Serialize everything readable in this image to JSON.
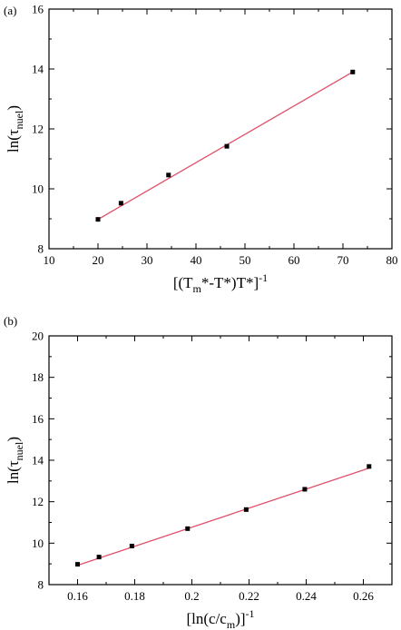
{
  "chart_data": [
    {
      "type": "scatter",
      "panel_label": "(a)",
      "xlabel_parts": [
        "[(T",
        "m",
        "*-T*)T*]",
        "-1"
      ],
      "ylabel_parts": [
        "ln(τ",
        "nuel",
        ")"
      ],
      "xlim": [
        10,
        80
      ],
      "ylim": [
        8,
        16
      ],
      "xticks": [
        10,
        20,
        30,
        40,
        50,
        60,
        70,
        80
      ],
      "yticks": [
        8,
        10,
        12,
        14,
        16
      ],
      "xtick_labels": [
        "10",
        "20",
        "30",
        "40",
        "50",
        "60",
        "70",
        "80"
      ],
      "ytick_labels": [
        "8",
        "10",
        "12",
        "14",
        "16"
      ],
      "grid": false,
      "series": [
        {
          "x": [
            20.0,
            24.7,
            34.4,
            46.3,
            72.0
          ],
          "y": [
            8.98,
            9.52,
            10.46,
            11.42,
            13.9
          ]
        }
      ],
      "fit_line": {
        "x": [
          20.0,
          72.0
        ],
        "y": [
          8.98,
          13.9
        ],
        "color": "#e0506a"
      }
    },
    {
      "type": "scatter",
      "panel_label": "(b)",
      "xlabel_parts": [
        "[ln(c/c",
        "m",
        ")]",
        "-1"
      ],
      "ylabel_parts": [
        "ln(τ",
        "nuel",
        ")"
      ],
      "xlim": [
        0.15,
        0.27
      ],
      "ylim": [
        8,
        20
      ],
      "xticks": [
        0.16,
        0.18,
        0.2,
        0.22,
        0.24,
        0.26
      ],
      "yticks": [
        8,
        10,
        12,
        14,
        16,
        18,
        20
      ],
      "xtick_labels": [
        "0.16",
        "0.18",
        "0.2",
        "0.22",
        "0.24",
        "0.26"
      ],
      "ytick_labels": [
        "8",
        "10",
        "12",
        "14",
        "16",
        "18",
        "20"
      ],
      "grid": false,
      "series": [
        {
          "x": [
            0.16,
            0.1675,
            0.179,
            0.1985,
            0.219,
            0.2395,
            0.262
          ],
          "y": [
            8.98,
            9.33,
            9.86,
            10.7,
            11.62,
            12.6,
            13.7
          ]
        }
      ],
      "fit_line": {
        "x": [
          0.16,
          0.262
        ],
        "y": [
          8.93,
          13.62
        ],
        "color": "#e0506a"
      }
    }
  ]
}
